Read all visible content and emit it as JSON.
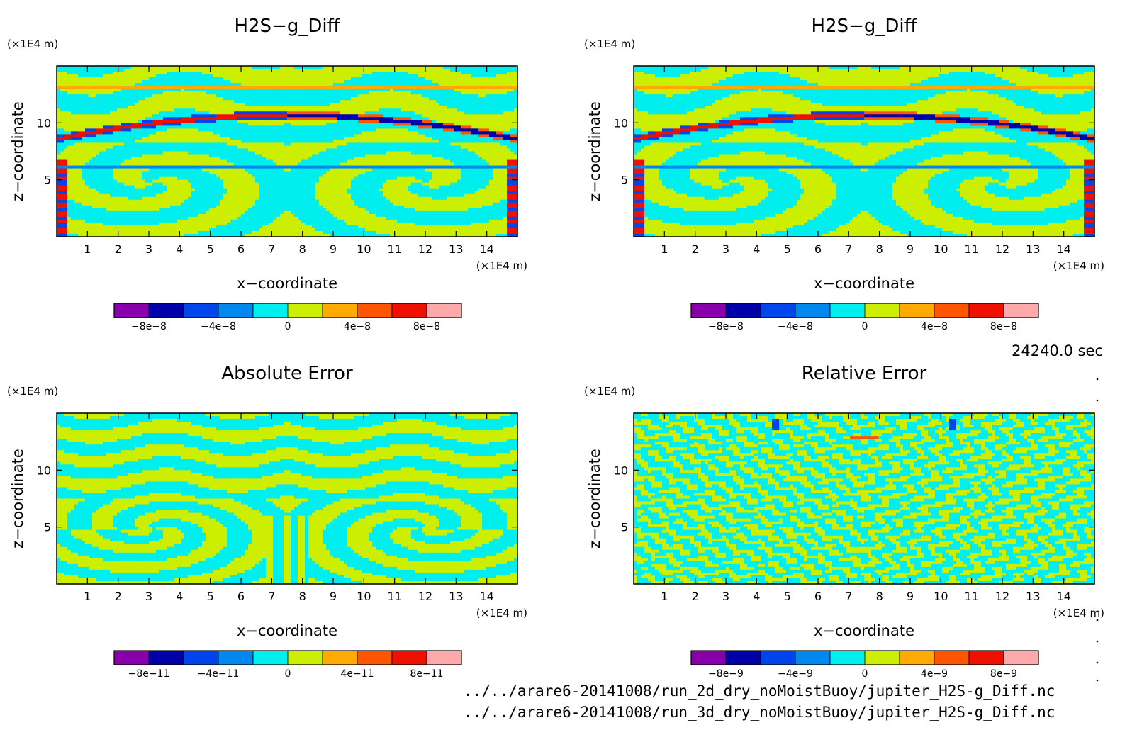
{
  "time_label": "24240.0 sec",
  "footer": {
    "file1": "../../arare6-20141008/run_2d_dry_noMoistBuoy/jupiter_H2S-g_Diff.nc",
    "file2": "../../arare6-20141008/run_3d_dry_noMoistBuoy/jupiter_H2S-g_Diff.nc"
  },
  "colormap": [
    "#8800aa",
    "#0000aa",
    "#0044ee",
    "#0088ee",
    "#00eeee",
    "#ccee00",
    "#ffaa00",
    "#ff5500",
    "#ee1100",
    "#ffaaaa"
  ],
  "chart_data": [
    {
      "type": "heatmap",
      "title": "H2S−g_Diff",
      "xlabel": "x−coordinate",
      "ylabel": "z−coordinate",
      "x_unit": "(×1E4 m)",
      "y_unit": "(×1E4 m)",
      "xlim": [
        0,
        15
      ],
      "ylim": [
        0,
        15
      ],
      "xticks": [
        1,
        2,
        3,
        4,
        5,
        6,
        7,
        8,
        9,
        10,
        11,
        12,
        13,
        14
      ],
      "yticks": [
        5,
        10
      ],
      "colorbar_ticks": [
        "−8e−8",
        "−4e−8",
        "0",
        "4e−8",
        "8e−8"
      ],
      "pattern": "vortex"
    },
    {
      "type": "heatmap",
      "title": "H2S−g_Diff",
      "xlabel": "x−coordinate",
      "ylabel": "z−coordinate",
      "x_unit": "(×1E4 m)",
      "y_unit": "(×1E4 m)",
      "xlim": [
        0,
        15
      ],
      "ylim": [
        0,
        15
      ],
      "xticks": [
        1,
        2,
        3,
        4,
        5,
        6,
        7,
        8,
        9,
        10,
        11,
        12,
        13,
        14
      ],
      "yticks": [
        5,
        10
      ],
      "colorbar_ticks": [
        "−8e−8",
        "−4e−8",
        "0",
        "4e−8",
        "8e−8"
      ],
      "pattern": "vortex"
    },
    {
      "type": "heatmap",
      "title": "Absolute Error",
      "xlabel": "x−coordinate",
      "ylabel": "z−coordinate",
      "x_unit": "(×1E4 m)",
      "y_unit": "(×1E4 m)",
      "xlim": [
        0,
        15
      ],
      "ylim": [
        0,
        15
      ],
      "xticks": [
        1,
        2,
        3,
        4,
        5,
        6,
        7,
        8,
        9,
        10,
        11,
        12,
        13,
        14
      ],
      "yticks": [
        5,
        10
      ],
      "colorbar_ticks": [
        "−8e−11",
        "−4e−11",
        "0",
        "4e−11",
        "8e−11"
      ],
      "pattern": "stripes"
    },
    {
      "type": "heatmap",
      "title": "Relative Error",
      "xlabel": "x−coordinate",
      "ylabel": "z−coordinate",
      "x_unit": "(×1E4 m)",
      "y_unit": "(×1E4 m)",
      "xlim": [
        0,
        15
      ],
      "ylim": [
        0,
        15
      ],
      "xticks": [
        1,
        2,
        3,
        4,
        5,
        6,
        7,
        8,
        9,
        10,
        11,
        12,
        13,
        14
      ],
      "yticks": [
        5,
        10
      ],
      "colorbar_ticks": [
        "−8e−9",
        "−4e−9",
        "0",
        "4e−9",
        "8e−9"
      ],
      "pattern": "noise"
    }
  ]
}
